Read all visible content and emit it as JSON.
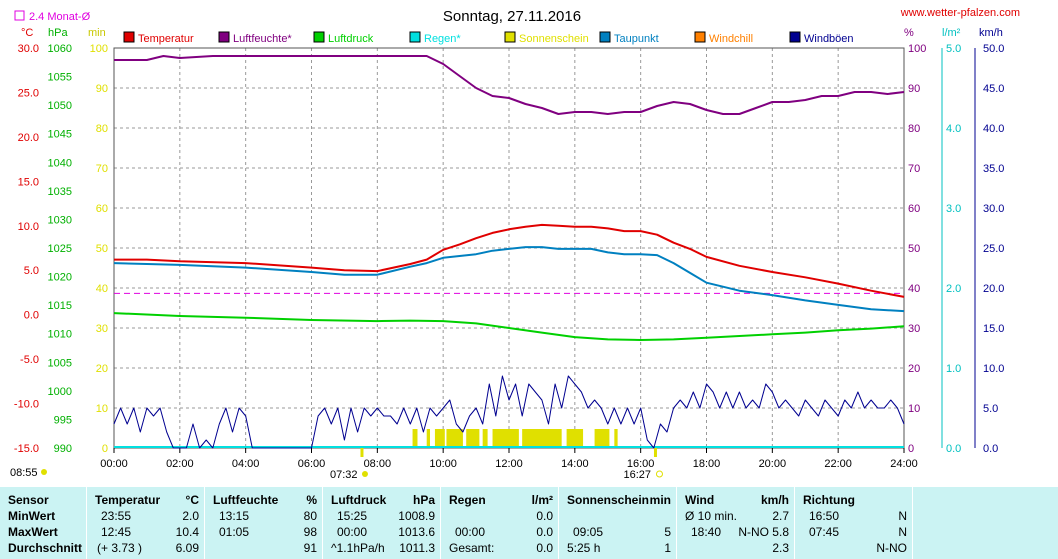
{
  "header": {
    "title": "Sonntag, 27.11.2016",
    "site": "www.wetter-pfalzen.com",
    "monthly_avg_label": "2.4 Monat-Ø"
  },
  "units": {
    "celsius": "°C",
    "hpa": "hPa",
    "min": "min",
    "percent": "%",
    "lm2": "l/m²",
    "kmh": "km/h"
  },
  "legend": [
    {
      "label": "Temperatur",
      "color": "#e00000"
    },
    {
      "label": "Luftfeuchte*",
      "color": "#800080"
    },
    {
      "label": "Luftdruck",
      "color": "#00d000"
    },
    {
      "label": "Regen*",
      "color": "#00e0e0"
    },
    {
      "label": "Sonnenschein",
      "color": "#e0e000"
    },
    {
      "label": "Taupunkt",
      "color": "#0080c0"
    },
    {
      "label": "Windchill",
      "color": "#ff8000"
    },
    {
      "label": "Windböen",
      "color": "#000090"
    }
  ],
  "chart_data": {
    "type": "line",
    "x_ticks": [
      "00:00",
      "02:00",
      "04:00",
      "06:00",
      "08:00",
      "10:00",
      "12:00",
      "14:00",
      "16:00",
      "18:00",
      "20:00",
      "22:00",
      "24:00"
    ],
    "markers": {
      "sunrise": "07:32",
      "sunset": "16:27",
      "left_time": "08:55"
    },
    "axes": {
      "temperature": {
        "ticks": [
          "30.0",
          "25.0",
          "20.0",
          "15.0",
          "10.0",
          "5.0",
          "0.0",
          "-5.0",
          "-10.0",
          "-15.0"
        ],
        "range": [
          -15,
          30
        ],
        "color": "#e00000"
      },
      "pressure": {
        "ticks": [
          "1060",
          "1055",
          "1050",
          "1045",
          "1040",
          "1035",
          "1030",
          "1025",
          "1020",
          "1015",
          "1010",
          "1005",
          "1000",
          "995",
          "990"
        ],
        "range": [
          990,
          1060
        ],
        "color": "#00b000"
      },
      "minutes": {
        "ticks": [
          "100",
          "90",
          "80",
          "70",
          "60",
          "50",
          "40",
          "30",
          "20",
          "10",
          "0"
        ],
        "range": [
          0,
          100
        ],
        "color": "#e0e000"
      },
      "humidity": {
        "ticks": [
          "100",
          "90",
          "80",
          "70",
          "60",
          "50",
          "40",
          "30",
          "20",
          "10",
          "0"
        ],
        "range": [
          0,
          100
        ],
        "color": "#800080"
      },
      "rain": {
        "ticks": [
          "5.0",
          "4.0",
          "3.0",
          "2.0",
          "1.0",
          "0.0"
        ],
        "range": [
          0,
          5
        ],
        "color": "#00c0c0"
      },
      "wind": {
        "ticks": [
          "50.0",
          "45.0",
          "40.0",
          "35.0",
          "30.0",
          "25.0",
          "20.0",
          "15.0",
          "10.0",
          "5.0",
          "0.0"
        ],
        "range": [
          0,
          50
        ],
        "color": "#000090"
      }
    },
    "monthly_avg_temperature": 2.4,
    "series": [
      {
        "name": "Luftfeuchte*",
        "axis": "humidity",
        "color": "#800080",
        "x": [
          0,
          1,
          1.5,
          2,
          3,
          5,
          7,
          9,
          9.5,
          10,
          10.5,
          11,
          11.5,
          12,
          12.5,
          13,
          13.5,
          14,
          14.5,
          15,
          15.5,
          16,
          16.5,
          17,
          17.5,
          18,
          18.5,
          19,
          19.5,
          20,
          20.5,
          21,
          21.5,
          22,
          22.5,
          23,
          23.5,
          24
        ],
        "y": [
          97,
          97,
          98,
          97.5,
          98,
          98,
          98,
          98,
          98,
          96,
          93,
          90,
          88,
          87.5,
          86,
          85,
          83.5,
          84,
          84,
          83.5,
          84,
          84,
          85.5,
          86.5,
          86,
          84.5,
          83.5,
          83.5,
          85,
          86.5,
          86.5,
          87,
          88,
          88,
          89,
          89,
          88.5,
          89
        ]
      },
      {
        "name": "Temperatur",
        "axis": "temperature",
        "color": "#e00000",
        "x": [
          0,
          1,
          2,
          4,
          6,
          7,
          8,
          9,
          9.5,
          10,
          10.5,
          11,
          11.5,
          12,
          12.5,
          13,
          13.5,
          14,
          14.5,
          15,
          15.5,
          16,
          16.5,
          17,
          17.5,
          18,
          19,
          20,
          21,
          22,
          23,
          24
        ],
        "y": [
          6.2,
          6.2,
          6,
          5.8,
          5.3,
          5,
          4.9,
          5.7,
          6.2,
          7.3,
          7.9,
          8.6,
          9.2,
          9.6,
          9.9,
          10.1,
          10,
          9.9,
          9.9,
          9.7,
          9.4,
          9.4,
          9,
          8.1,
          7.4,
          6.5,
          5.5,
          4.8,
          4.2,
          3.5,
          2.7,
          2
        ]
      },
      {
        "name": "Taupunkt",
        "axis": "temperature",
        "color": "#0080c0",
        "x": [
          0,
          1,
          2,
          4,
          6,
          7,
          8,
          9,
          9.5,
          10,
          10.5,
          11,
          11.5,
          12,
          12.5,
          13,
          13.5,
          14,
          14.5,
          15,
          15.5,
          16,
          16.5,
          17,
          17.5,
          18,
          19,
          20,
          21,
          22,
          23,
          24
        ],
        "y": [
          5.8,
          5.7,
          5.6,
          5.3,
          4.8,
          4.5,
          4.5,
          5.4,
          5.8,
          6.4,
          6.6,
          6.8,
          7.2,
          7.4,
          7.6,
          7.6,
          7.4,
          7.4,
          7.4,
          7,
          6.8,
          6.8,
          6.7,
          5.8,
          4.7,
          3.6,
          2.7,
          2.2,
          1.6,
          1.1,
          0.6,
          0.4
        ]
      },
      {
        "name": "Luftdruck",
        "axis": "pressure",
        "color": "#00d000",
        "x": [
          0,
          2,
          4,
          6,
          8,
          9,
          10,
          11,
          12,
          13,
          14,
          15,
          16,
          17,
          18,
          19,
          20,
          21,
          22,
          23,
          24
        ],
        "y": [
          1013.6,
          1013.1,
          1012.8,
          1012.4,
          1012.2,
          1012.3,
          1012.2,
          1011.8,
          1011,
          1010.2,
          1009.4,
          1009,
          1008.9,
          1009,
          1009.3,
          1009.6,
          1009.9,
          1010.2,
          1010.6,
          1010.9,
          1011.3
        ]
      },
      {
        "name": "Windböen",
        "axis": "wind",
        "color": "#000090",
        "x": [
          0,
          0.2,
          0.4,
          0.6,
          0.8,
          1,
          1.2,
          1.4,
          1.6,
          1.8,
          2,
          2.2,
          2.4,
          2.6,
          2.8,
          3,
          3.2,
          3.4,
          3.6,
          3.8,
          4,
          4.2,
          4.4,
          4.6,
          4.8,
          5,
          5.2,
          5.4,
          5.6,
          5.8,
          6,
          6.2,
          6.4,
          6.6,
          6.8,
          7,
          7.2,
          7.4,
          7.6,
          7.8,
          8,
          8.2,
          8.4,
          8.6,
          8.8,
          9,
          9.2,
          9.4,
          9.6,
          9.8,
          10,
          10.2,
          10.4,
          10.6,
          10.8,
          11,
          11.2,
          11.4,
          11.6,
          11.8,
          12,
          12.2,
          12.4,
          12.6,
          12.8,
          13,
          13.2,
          13.4,
          13.6,
          13.8,
          14,
          14.2,
          14.4,
          14.6,
          14.8,
          15,
          15.2,
          15.4,
          15.6,
          15.8,
          16,
          16.2,
          16.4,
          16.6,
          16.8,
          17,
          17.2,
          17.4,
          17.6,
          17.8,
          18,
          18.2,
          18.4,
          18.6,
          18.8,
          19,
          19.2,
          19.4,
          19.6,
          19.8,
          20,
          20.2,
          20.4,
          20.6,
          20.8,
          21,
          21.2,
          21.4,
          21.6,
          21.8,
          22,
          22.2,
          22.4,
          22.6,
          22.8,
          23,
          23.2,
          23.4,
          23.6,
          23.8,
          24
        ],
        "y": [
          3,
          5,
          3,
          5,
          2,
          5,
          4,
          5,
          2,
          0,
          0,
          0,
          3,
          0,
          1,
          0,
          3,
          5,
          2,
          5,
          4,
          0,
          0,
          0,
          0,
          0,
          0,
          0,
          0,
          0,
          0,
          4,
          5,
          3,
          5,
          1,
          5,
          2,
          5,
          4,
          5,
          4,
          4,
          3,
          5,
          3,
          5,
          2,
          5,
          4,
          5,
          6,
          3,
          2,
          4,
          5,
          3,
          8,
          4,
          9,
          6,
          8,
          4,
          8,
          7,
          6,
          3,
          8,
          5,
          9,
          8,
          7,
          5,
          6,
          5,
          3,
          5,
          3,
          5,
          3,
          5,
          1,
          0,
          3,
          2,
          5,
          6,
          5,
          7,
          5,
          8,
          7,
          5,
          7,
          5,
          7,
          5,
          6,
          5,
          8,
          7,
          5,
          6,
          5,
          4,
          6,
          5,
          4,
          6,
          5,
          4,
          6,
          5,
          7,
          5,
          6,
          5,
          5,
          6,
          5,
          3
        ]
      }
    ],
    "sunshine_blocks": [
      [
        9.07,
        9.22
      ],
      [
        9.5,
        9.6
      ],
      [
        9.75,
        10.05
      ],
      [
        10.1,
        10.6
      ],
      [
        10.7,
        11.1
      ],
      [
        11.2,
        11.35
      ],
      [
        11.5,
        12.3
      ],
      [
        12.4,
        13.6
      ],
      [
        13.75,
        14.25
      ],
      [
        14.6,
        15.05
      ],
      [
        15.2,
        15.3
      ]
    ]
  },
  "table": {
    "sensor": {
      "header": "Sensor",
      "rows": [
        "MinWert",
        "MaxWert",
        "Durchschnitt"
      ]
    },
    "temperature": {
      "header": "Temperatur",
      "unit": "°C",
      "min_time": "23:55",
      "min_value": "2.0",
      "max_time": "12:45",
      "max_value": "10.4",
      "avg_note": "(+ 3.73 )",
      "avg_value": "6.09"
    },
    "humidity": {
      "header": "Luftfeuchte",
      "unit": "%",
      "min_time": "13:15",
      "min_value": "80",
      "max_time": "01:05",
      "max_value": "98",
      "avg_value": "91"
    },
    "pressure": {
      "header": "Luftdruck",
      "unit": "hPa",
      "min_time": "15:25",
      "min_value": "1008.9",
      "max_time": "00:00",
      "max_value": "1013.6",
      "avg_note": "^1.1hPa/h",
      "avg_value": "1011.3"
    },
    "rain": {
      "header": "Regen",
      "unit": "l/m²",
      "min_value": "0.0",
      "max_time": "00:00",
      "max_value": "0.0",
      "avg_note": "Gesamt:",
      "avg_value": "0.0"
    },
    "sunshine": {
      "header": "Sonnenschein",
      "unit": "min",
      "max_time": "09:05",
      "max_value": "5",
      "avg_note": "5:25 h",
      "avg_value": "1"
    },
    "wind": {
      "header": "Wind",
      "unit": "km/h",
      "min_note": "Ø 10 min.",
      "min_value": "2.7",
      "max_time": "18:40",
      "max_value": "N-NO 5.8",
      "avg_value": "2.3"
    },
    "direction": {
      "header": "Richtung",
      "min_time": "16:50",
      "min_value": "N",
      "max_time": "07:45",
      "max_value": "N",
      "avg_value": "N-NO"
    }
  }
}
